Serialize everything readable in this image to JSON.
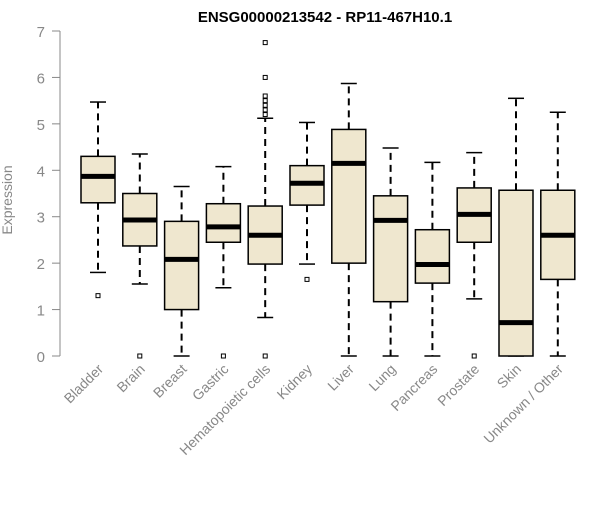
{
  "chart_data": {
    "type": "boxplot",
    "title": "ENSG00000213542 - RP11-467H10.1",
    "xlabel": "",
    "ylabel": "Expression",
    "ylim": [
      0,
      7
    ],
    "yticks": [
      0,
      1,
      2,
      3,
      4,
      5,
      6,
      7
    ],
    "grid": false,
    "categories": [
      "Bladder",
      "Brain",
      "Breast",
      "Gastric",
      "Hematopoietic cells",
      "Kidney",
      "Liver",
      "Lung",
      "Pancreas",
      "Prostate",
      "Skin",
      "Unknown / Other"
    ],
    "boxes": [
      {
        "name": "Bladder",
        "whisker_low": 1.8,
        "q1": 3.3,
        "median": 3.87,
        "q3": 4.3,
        "whisker_high": 5.47,
        "outliers": [
          1.3
        ]
      },
      {
        "name": "Brain",
        "whisker_low": 1.55,
        "q1": 2.37,
        "median": 2.93,
        "q3": 3.5,
        "whisker_high": 4.35,
        "outliers": [
          0.0
        ]
      },
      {
        "name": "Breast",
        "whisker_low": 0.0,
        "q1": 1.0,
        "median": 2.08,
        "q3": 2.9,
        "whisker_high": 3.65,
        "outliers": []
      },
      {
        "name": "Gastric",
        "whisker_low": 1.47,
        "q1": 2.45,
        "median": 2.78,
        "q3": 3.28,
        "whisker_high": 4.08,
        "outliers": [
          0.0
        ]
      },
      {
        "name": "Hematopoietic cells",
        "whisker_low": 0.83,
        "q1": 1.98,
        "median": 2.6,
        "q3": 3.23,
        "whisker_high": 5.12,
        "outliers": [
          0.0,
          5.2,
          5.3,
          5.4,
          5.5,
          5.6,
          6.0,
          6.75
        ]
      },
      {
        "name": "Kidney",
        "whisker_low": 1.98,
        "q1": 3.25,
        "median": 3.72,
        "q3": 4.1,
        "whisker_high": 5.03,
        "outliers": [
          1.65
        ]
      },
      {
        "name": "Liver",
        "whisker_low": 0.0,
        "q1": 2.0,
        "median": 4.15,
        "q3": 4.88,
        "whisker_high": 5.87,
        "outliers": []
      },
      {
        "name": "Lung",
        "whisker_low": 0.0,
        "q1": 1.17,
        "median": 2.92,
        "q3": 3.45,
        "whisker_high": 4.48,
        "outliers": []
      },
      {
        "name": "Pancreas",
        "whisker_low": 0.0,
        "q1": 1.57,
        "median": 1.97,
        "q3": 2.72,
        "whisker_high": 4.17,
        "outliers": []
      },
      {
        "name": "Prostate",
        "whisker_low": 1.23,
        "q1": 2.45,
        "median": 3.05,
        "q3": 3.62,
        "whisker_high": 4.38,
        "outliers": [
          0.0
        ]
      },
      {
        "name": "Skin",
        "whisker_low": 0.0,
        "q1": 0.0,
        "median": 0.72,
        "q3": 3.57,
        "whisker_high": 5.55,
        "outliers": []
      },
      {
        "name": "Unknown / Other",
        "whisker_low": 0.0,
        "q1": 1.65,
        "median": 2.6,
        "q3": 3.57,
        "whisker_high": 5.25,
        "outliers": []
      }
    ],
    "colors": {
      "box_fill": "#efe7cf",
      "box_stroke": "#000000",
      "median": "#000000",
      "axis": "#888888",
      "tick_label": "#888888",
      "title": "#000000"
    }
  }
}
